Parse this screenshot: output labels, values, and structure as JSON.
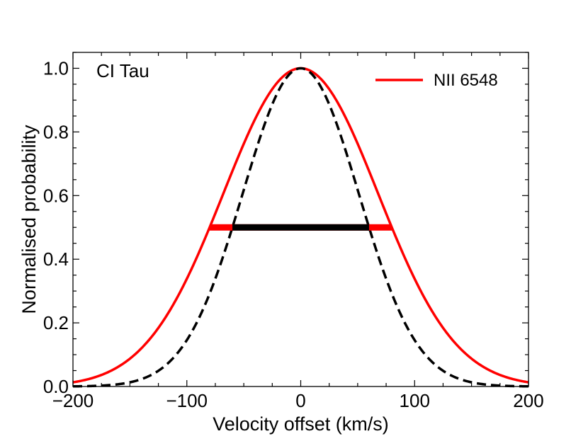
{
  "chart_data": {
    "type": "line",
    "title": "",
    "annotation": "CI Tau",
    "xlabel": "Velocity offset (km/s)",
    "ylabel": "Normalised probability",
    "xlim": [
      -200,
      200
    ],
    "ylim": [
      0.0,
      1.05
    ],
    "x_ticks": [
      -200,
      -100,
      0,
      100,
      200
    ],
    "x_tick_labels": [
      "−200",
      "−100",
      "0",
      "100",
      "200"
    ],
    "y_ticks": [
      0.0,
      0.2,
      0.4,
      0.6,
      0.8,
      1.0
    ],
    "y_tick_labels": [
      "0.0",
      "0.2",
      "0.4",
      "0.6",
      "0.8",
      "1.0"
    ],
    "grid": false,
    "legend_position": "top-right",
    "series": [
      {
        "name": "NII 6548",
        "kind": "gaussian",
        "mean": 0,
        "fwhm": 160,
        "amplitude": 1.0,
        "color": "#ff0000",
        "dash": "solid",
        "in_legend": true
      },
      {
        "kind": "gaussian",
        "mean": 0,
        "fwhm": 120,
        "amplitude": 1.0,
        "color": "#000000",
        "dash": "dashed",
        "in_legend": false
      }
    ],
    "fwhm_bars": [
      {
        "x_start": -80,
        "x_end": 80,
        "y": 0.5,
        "color": "#ff0000"
      },
      {
        "x_start": -60,
        "x_end": 60,
        "y": 0.5,
        "color": "#000000"
      }
    ]
  }
}
